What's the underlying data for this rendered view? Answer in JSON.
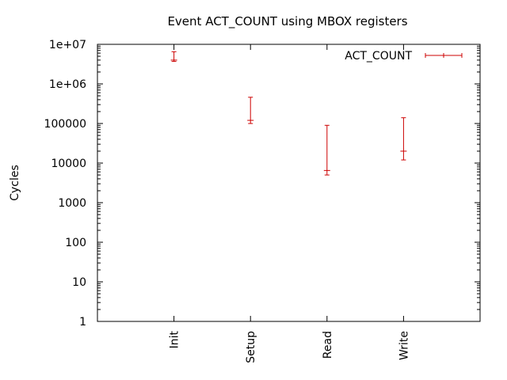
{
  "chart_data": {
    "type": "errorbar",
    "title": "Event ACT_COUNT using MBOX registers",
    "xlabel": "",
    "ylabel": "Cycles",
    "y_scale": "log",
    "ylim": [
      1,
      10000000
    ],
    "y_ticks": [
      1,
      10,
      100,
      1000,
      10000,
      100000,
      1000000,
      10000000
    ],
    "y_tick_labels": [
      "1",
      "10",
      "100",
      "1000",
      "10000",
      "100000",
      "1e+06",
      "1e+07"
    ],
    "categories": [
      "Init",
      "Setup",
      "Read",
      "Write"
    ],
    "grid": false,
    "legend_position": "top-right",
    "series": [
      {
        "name": "ACT_COUNT",
        "color": "#cc0000",
        "points": [
          {
            "category": "Init",
            "value": 4000000,
            "low": 3700000,
            "high": 6500000
          },
          {
            "category": "Setup",
            "value": 120000,
            "low": 100000,
            "high": 460000
          },
          {
            "category": "Read",
            "value": 6500,
            "low": 5000,
            "high": 90000
          },
          {
            "category": "Write",
            "value": 20000,
            "low": 12000,
            "high": 140000
          }
        ]
      }
    ]
  }
}
